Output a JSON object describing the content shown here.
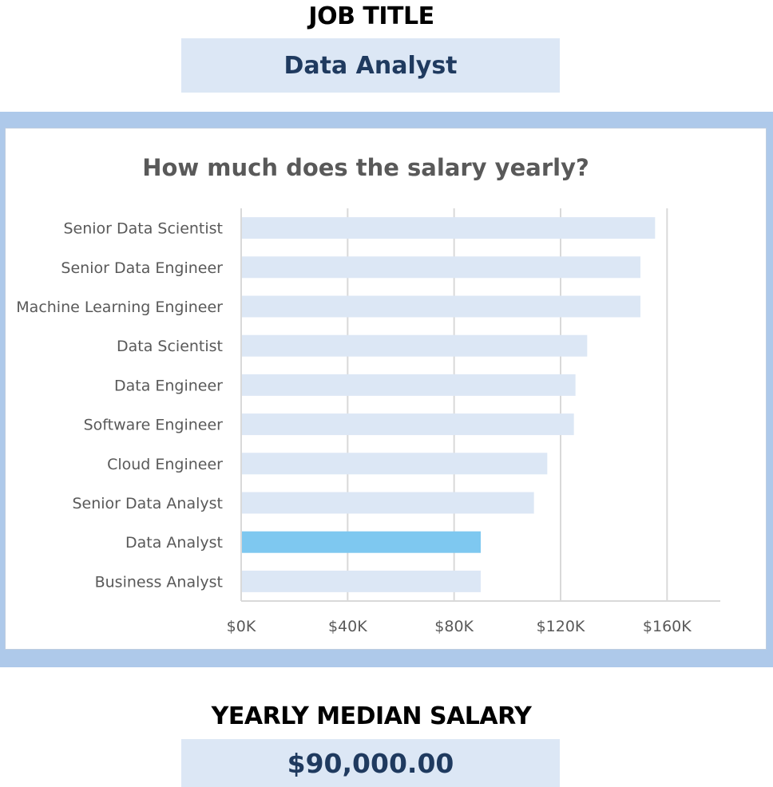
{
  "header": {
    "job_title_label": "JOB TITLE",
    "job_title_value": "Data Analyst"
  },
  "footer": {
    "salary_label": "YEARLY MEDIAN SALARY",
    "salary_value": "$90,000.00"
  },
  "colors": {
    "bar_default": "#dce7f5",
    "bar_highlight": "#7ec8f0",
    "frame": "#aec9ea",
    "value_text": "#1f3a5f",
    "chart_text": "#595959",
    "gridline": "#d9d9d9"
  },
  "chart_data": {
    "type": "bar",
    "orientation": "horizontal",
    "title": "How much does the salary yearly?",
    "xlabel": "",
    "ylabel": "",
    "categories": [
      "Senior Data Scientist",
      "Senior Data Engineer",
      "Machine Learning Engineer",
      "Data Scientist",
      "Data Engineer",
      "Software Engineer",
      "Cloud Engineer",
      "Senior Data Analyst",
      "Data Analyst",
      "Business Analyst"
    ],
    "values": [
      155500,
      150000,
      150000,
      130000,
      125600,
      125000,
      115000,
      110000,
      90000,
      90000
    ],
    "highlight": "Data Analyst",
    "xlim": [
      0,
      180000
    ],
    "xticks": [
      0,
      40000,
      80000,
      120000,
      160000
    ],
    "xtick_labels": [
      "$0K",
      "$40K",
      "$80K",
      "$120K",
      "$160K"
    ],
    "grid": "vertical",
    "legend": "none"
  }
}
